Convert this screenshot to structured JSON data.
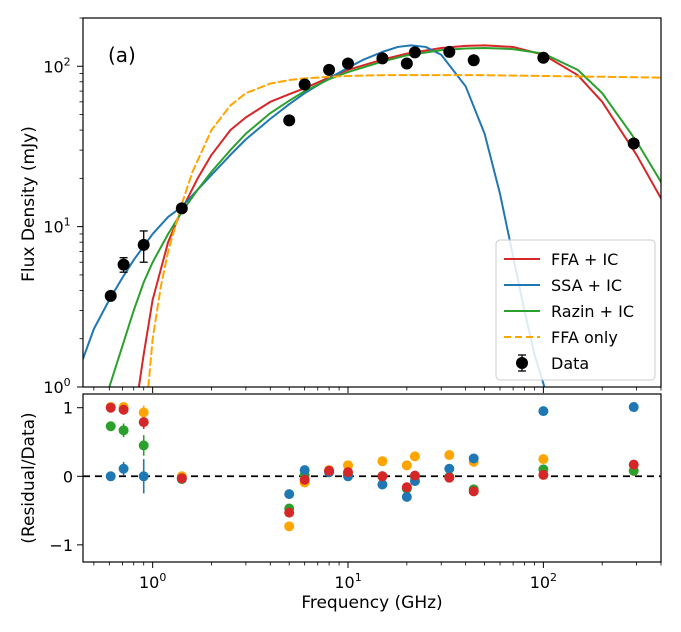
{
  "chart_data": [
    {
      "type": "line",
      "panel_label": "(a)",
      "xlabel": "",
      "ylabel": "Flux Density (mJy)",
      "xscale": "log",
      "yscale": "log",
      "xlim": [
        0.44,
        400
      ],
      "ylim": [
        1,
        200
      ],
      "x_ticks": [
        {
          "value": 1,
          "label": "10",
          "exp": "0"
        },
        {
          "value": 10,
          "label": "10",
          "exp": "1"
        },
        {
          "value": 100,
          "label": "10",
          "exp": "2"
        }
      ],
      "y_ticks": [
        {
          "value": 1,
          "label": "10",
          "exp": "0"
        },
        {
          "value": 10,
          "label": "10",
          "exp": "1"
        },
        {
          "value": 100,
          "label": "10",
          "exp": "2"
        }
      ],
      "legend": {
        "placement": "lower-right"
      },
      "series": [
        {
          "name": "FFA + IC",
          "color": "#d62728",
          "style": "solid",
          "x": [
            0.85,
            0.9,
            1.0,
            1.2,
            1.4,
            1.7,
            2.0,
            2.5,
            3.0,
            4.0,
            5.0,
            6.0,
            8.0,
            10,
            15,
            20,
            30,
            40,
            50,
            70,
            100,
            150,
            200,
            300,
            400
          ],
          "y": [
            1.0,
            1.6,
            3.5,
            8.0,
            12.5,
            20.0,
            28.0,
            40.0,
            48.0,
            60.0,
            67.0,
            73.0,
            85.0,
            95.0,
            110.0,
            120.0,
            130.0,
            134.0,
            135.0,
            132.0,
            118.0,
            88.0,
            60.0,
            28.0,
            15.0
          ]
        },
        {
          "name": "SSA + IC",
          "color": "#1f77b4",
          "style": "solid",
          "x": [
            0.44,
            0.5,
            0.6,
            0.7,
            0.8,
            1.0,
            1.2,
            1.4,
            1.7,
            2.0,
            2.5,
            3.0,
            4.0,
            5.0,
            6.0,
            8.0,
            10,
            12,
            15,
            18,
            21,
            25,
            30,
            40,
            50,
            60,
            70,
            80,
            90,
            100,
            110
          ],
          "y": [
            1.5,
            2.3,
            3.5,
            4.8,
            6.2,
            9.0,
            11.5,
            13.2,
            17.0,
            21.0,
            28.0,
            35.0,
            47.0,
            58.0,
            68.0,
            84.0,
            98.0,
            110.0,
            123.0,
            132.0,
            135.0,
            132.0,
            118.0,
            75.0,
            38.0,
            16.0,
            6.5,
            3.0,
            1.6,
            1.05,
            0.7
          ]
        },
        {
          "name": "Razin + IC",
          "color": "#2ca02c",
          "style": "solid",
          "x": [
            0.6,
            0.7,
            0.8,
            0.9,
            1.0,
            1.2,
            1.4,
            1.7,
            2.0,
            2.5,
            3.0,
            4.0,
            5.0,
            6.0,
            8.0,
            10,
            15,
            20,
            30,
            40,
            50,
            70,
            100,
            150,
            200,
            300,
            400
          ],
          "y": [
            1.0,
            1.8,
            3.0,
            4.5,
            6.0,
            9.0,
            12.2,
            17.0,
            22.0,
            30.0,
            38.0,
            51.0,
            61.0,
            70.0,
            83.0,
            92.0,
            107.0,
            117.0,
            126.0,
            129.0,
            130.0,
            128.0,
            120.0,
            95.0,
            68.0,
            34.0,
            19.0
          ]
        },
        {
          "name": "FFA only",
          "color": "#ffa500",
          "style": "dashed",
          "x": [
            0.95,
            1.0,
            1.1,
            1.2,
            1.4,
            1.6,
            2.0,
            2.5,
            3.0,
            4.0,
            5.0,
            6.0,
            8.0,
            10,
            15,
            20,
            30,
            50,
            100,
            200,
            400
          ],
          "y": [
            1.0,
            2.0,
            4.2,
            7.0,
            13.5,
            22.0,
            40.0,
            57.0,
            68.0,
            78.0,
            82.0,
            84.0,
            86.0,
            87.0,
            88.0,
            88.0,
            88.0,
            88.0,
            87.0,
            86.0,
            85.0
          ]
        },
        {
          "name": "Data",
          "color": "#000000",
          "style": "points",
          "x": [
            0.61,
            0.71,
            0.9,
            1.41,
            5.0,
            6.0,
            8.0,
            10.0,
            15.0,
            20.0,
            22.0,
            33.0,
            44.0,
            100.0,
            290.0
          ],
          "y": [
            3.7,
            5.8,
            7.7,
            13.0,
            46.0,
            77.0,
            95.0,
            104.0,
            112.0,
            104.0,
            122.0,
            123.0,
            109.0,
            113.0,
            33.0
          ],
          "yerr": [
            0,
            0.6,
            1.7,
            0,
            0,
            0,
            0,
            0,
            0,
            0,
            0,
            0,
            0,
            0,
            0
          ]
        }
      ]
    },
    {
      "type": "scatter",
      "xlabel": "Frequency (GHz)",
      "ylabel": "(Residual/Data)",
      "xscale": "log",
      "xlim": [
        0.44,
        400
      ],
      "ylim": [
        -1.25,
        1.2
      ],
      "x_ticks": [
        {
          "value": 1,
          "label": "10",
          "exp": "0"
        },
        {
          "value": 10,
          "label": "10",
          "exp": "1"
        },
        {
          "value": 100,
          "label": "10",
          "exp": "2"
        }
      ],
      "y_ticks": [
        {
          "value": -1,
          "label": "−1"
        },
        {
          "value": 0,
          "label": "0"
        },
        {
          "value": 1,
          "label": "1"
        }
      ],
      "reference_line": {
        "y": 0,
        "style": "dashed"
      },
      "x": [
        0.61,
        0.71,
        0.9,
        1.41,
        5.0,
        6.0,
        8.0,
        10.0,
        15.0,
        20.0,
        22.0,
        33.0,
        44.0,
        100.0,
        290.0
      ],
      "series": [
        {
          "name": "FFA + IC",
          "color": "#d62728",
          "y": [
            1.0,
            0.97,
            0.79,
            -0.03,
            -0.53,
            -0.05,
            0.08,
            0.06,
            0.0,
            -0.16,
            0.01,
            -0.02,
            -0.22,
            0.02,
            0.17
          ]
        },
        {
          "name": "SSA + IC",
          "color": "#1f77b4",
          "y": [
            0.0,
            0.11,
            0.0,
            -0.03,
            -0.26,
            0.09,
            0.06,
            0.0,
            -0.12,
            -0.3,
            -0.07,
            0.11,
            0.26,
            0.95,
            1.01
          ]
        },
        {
          "name": "Razin + IC",
          "color": "#2ca02c",
          "y": [
            0.73,
            0.67,
            0.45,
            -0.04,
            -0.47,
            0.02,
            0.07,
            0.03,
            0.0,
            -0.18,
            0.0,
            -0.01,
            -0.19,
            0.1,
            0.08
          ]
        },
        {
          "name": "FFA only",
          "color": "#ffa500",
          "y": [
            1.01,
            1.01,
            0.93,
            0.0,
            -0.73,
            -0.09,
            0.09,
            0.16,
            0.22,
            0.16,
            0.29,
            0.31,
            0.21,
            0.25,
            0.08
          ]
        }
      ],
      "error_bars": [
        {
          "x": 0.71,
          "y": 0.11,
          "yerr": 0.1,
          "color": "#1f77b4"
        },
        {
          "x": 0.71,
          "y": 0.67,
          "yerr": 0.1,
          "color": "#2ca02c"
        },
        {
          "x": 0.71,
          "y": 0.97,
          "yerr": 0.07,
          "color": "#d62728"
        },
        {
          "x": 0.9,
          "y": 0.0,
          "yerr": 0.25,
          "color": "#1f77b4"
        },
        {
          "x": 0.9,
          "y": 0.45,
          "yerr": 0.15,
          "color": "#2ca02c"
        },
        {
          "x": 0.9,
          "y": 0.79,
          "yerr": 0.1,
          "color": "#d62728"
        },
        {
          "x": 0.9,
          "y": 0.93,
          "yerr": 0.1,
          "color": "#ffa500"
        }
      ]
    }
  ]
}
